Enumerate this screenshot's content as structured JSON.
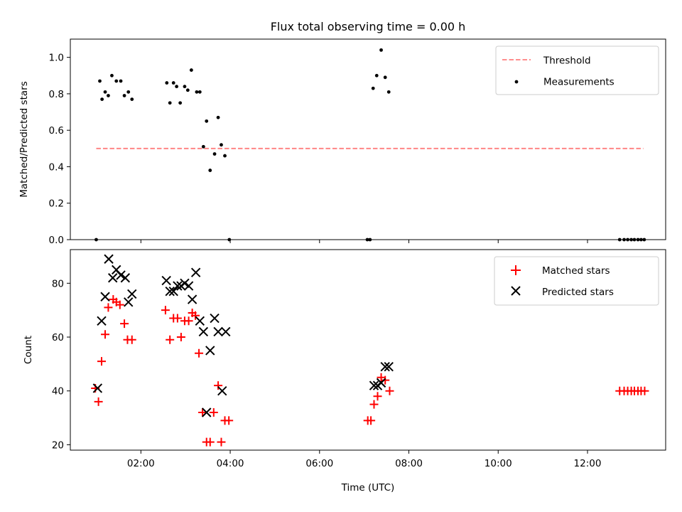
{
  "chart_data": [
    {
      "type": "scatter",
      "title": "Flux total observing time = 0.00 h",
      "xlabel": "",
      "ylabel": "Matched/Predicted stars",
      "xlim": [
        0.42,
        13.75
      ],
      "ylim": [
        0.0,
        1.1
      ],
      "yticks": [
        0.0,
        0.2,
        0.4,
        0.6,
        0.8,
        1.0
      ],
      "ytick_labels": [
        "0.0",
        "0.2",
        "0.4",
        "0.6",
        "0.8",
        "1.0"
      ],
      "grid": false,
      "legend": {
        "position": "top-right",
        "threshold_label": "Threshold",
        "measurements_label": "Measurements"
      },
      "colors": {
        "threshold": "#ff7f7f",
        "measurements": "#000000"
      },
      "threshold": {
        "value": 0.5,
        "x_start": 1.0,
        "x_end": 13.25
      },
      "measurements": [
        [
          1.0,
          0.0
        ],
        [
          1.08,
          0.87
        ],
        [
          1.13,
          0.77
        ],
        [
          1.2,
          0.81
        ],
        [
          1.27,
          0.79
        ],
        [
          1.35,
          0.9
        ],
        [
          1.45,
          0.87
        ],
        [
          1.55,
          0.87
        ],
        [
          1.63,
          0.79
        ],
        [
          1.72,
          0.81
        ],
        [
          1.8,
          0.77
        ],
        [
          2.58,
          0.86
        ],
        [
          2.65,
          0.75
        ],
        [
          2.73,
          0.86
        ],
        [
          2.8,
          0.84
        ],
        [
          2.88,
          0.75
        ],
        [
          2.98,
          0.84
        ],
        [
          3.05,
          0.82
        ],
        [
          3.13,
          0.93
        ],
        [
          3.25,
          0.81
        ],
        [
          3.32,
          0.81
        ],
        [
          3.4,
          0.51
        ],
        [
          3.47,
          0.65
        ],
        [
          3.55,
          0.38
        ],
        [
          3.65,
          0.47
        ],
        [
          3.73,
          0.67
        ],
        [
          3.8,
          0.52
        ],
        [
          3.88,
          0.46
        ],
        [
          3.98,
          0.0
        ],
        [
          7.07,
          0.0
        ],
        [
          7.13,
          0.0
        ],
        [
          7.2,
          0.83
        ],
        [
          7.28,
          0.9
        ],
        [
          7.38,
          1.04
        ],
        [
          7.47,
          0.89
        ],
        [
          7.55,
          0.81
        ],
        [
          12.72,
          0.0
        ],
        [
          12.82,
          0.0
        ],
        [
          12.9,
          0.0
        ],
        [
          12.98,
          0.0
        ],
        [
          13.05,
          0.0
        ],
        [
          13.13,
          0.0
        ],
        [
          13.2,
          0.0
        ],
        [
          13.27,
          0.0
        ]
      ]
    },
    {
      "type": "scatter",
      "title": "",
      "xlabel": "Time (UTC)",
      "ylabel": "Count",
      "xlim": [
        0.42,
        13.75
      ],
      "ylim": [
        18.0,
        92.5
      ],
      "xticks": [
        2,
        4,
        6,
        8,
        10,
        12
      ],
      "xtick_labels": [
        "02:00",
        "04:00",
        "06:00",
        "08:00",
        "10:00",
        "12:00"
      ],
      "yticks": [
        20,
        40,
        60,
        80
      ],
      "ytick_labels": [
        "20",
        "40",
        "60",
        "80"
      ],
      "grid": false,
      "legend": {
        "position": "top-right",
        "matched_label": "Matched stars",
        "predicted_label": "Predicted stars"
      },
      "colors": {
        "matched": "#ff0000",
        "predicted": "#000000"
      },
      "series": [
        {
          "name": "Matched stars",
          "marker": "plus",
          "points": [
            [
              0.98,
              41
            ],
            [
              1.05,
              36
            ],
            [
              1.12,
              51
            ],
            [
              1.2,
              61
            ],
            [
              1.27,
              71
            ],
            [
              1.38,
              74
            ],
            [
              1.45,
              73
            ],
            [
              1.53,
              72
            ],
            [
              1.63,
              65
            ],
            [
              1.7,
              59
            ],
            [
              1.8,
              59
            ],
            [
              2.55,
              70
            ],
            [
              2.65,
              59
            ],
            [
              2.73,
              67
            ],
            [
              2.82,
              67
            ],
            [
              2.9,
              60
            ],
            [
              2.98,
              66
            ],
            [
              3.07,
              66
            ],
            [
              3.15,
              69
            ],
            [
              3.22,
              68
            ],
            [
              3.3,
              54
            ],
            [
              3.38,
              32
            ],
            [
              3.47,
              21
            ],
            [
              3.55,
              21
            ],
            [
              3.63,
              32
            ],
            [
              3.73,
              42
            ],
            [
              3.8,
              21
            ],
            [
              3.88,
              29
            ],
            [
              3.97,
              29
            ],
            [
              7.08,
              29
            ],
            [
              7.15,
              29
            ],
            [
              7.22,
              35
            ],
            [
              7.3,
              38
            ],
            [
              7.38,
              45
            ],
            [
              7.47,
              44
            ],
            [
              7.57,
              40
            ],
            [
              12.72,
              40
            ],
            [
              12.82,
              40
            ],
            [
              12.9,
              40
            ],
            [
              12.98,
              40
            ],
            [
              13.05,
              40
            ],
            [
              13.13,
              40
            ],
            [
              13.2,
              40
            ],
            [
              13.28,
              40
            ]
          ]
        },
        {
          "name": "Predicted stars",
          "marker": "x",
          "points": [
            [
              1.03,
              41
            ],
            [
              1.12,
              66
            ],
            [
              1.2,
              75
            ],
            [
              1.28,
              89
            ],
            [
              1.37,
              82
            ],
            [
              1.45,
              85
            ],
            [
              1.55,
              83
            ],
            [
              1.65,
              82
            ],
            [
              1.72,
              73
            ],
            [
              1.8,
              76
            ],
            [
              2.57,
              81
            ],
            [
              2.65,
              77
            ],
            [
              2.73,
              77
            ],
            [
              2.82,
              79
            ],
            [
              2.9,
              79
            ],
            [
              2.98,
              80
            ],
            [
              3.07,
              79
            ],
            [
              3.15,
              74
            ],
            [
              3.23,
              84
            ],
            [
              3.32,
              66
            ],
            [
              3.4,
              62
            ],
            [
              3.47,
              32
            ],
            [
              3.55,
              55
            ],
            [
              3.65,
              67
            ],
            [
              3.73,
              62
            ],
            [
              3.82,
              40
            ],
            [
              3.9,
              62
            ],
            [
              7.22,
              42
            ],
            [
              7.3,
              42
            ],
            [
              7.38,
              43
            ],
            [
              7.47,
              49
            ],
            [
              7.55,
              49
            ]
          ]
        }
      ]
    }
  ]
}
